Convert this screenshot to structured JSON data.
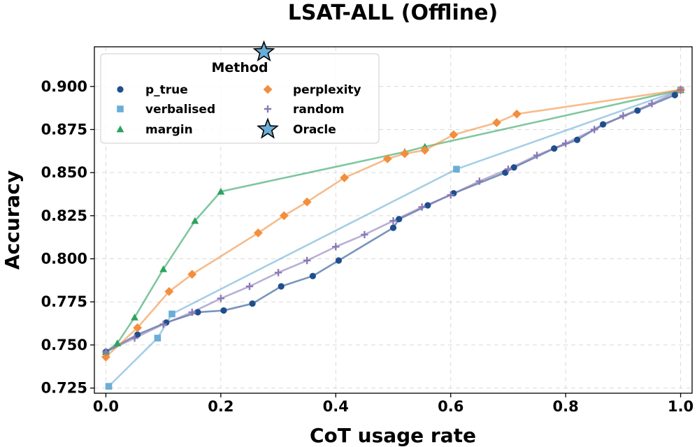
{
  "chart_data": {
    "type": "line",
    "title": "LSAT-ALL (Offline)",
    "xlabel": "CoT usage rate",
    "ylabel": "Accuracy",
    "xlim": [
      -0.02,
      1.02
    ],
    "ylim": [
      0.722,
      0.923
    ],
    "xticks": [
      0.0,
      0.2,
      0.4,
      0.6,
      0.8,
      1.0
    ],
    "xtick_labels": [
      "0.0",
      "0.2",
      "0.4",
      "0.6",
      "0.8",
      "1.0"
    ],
    "yticks": [
      0.725,
      0.75,
      0.775,
      0.8,
      0.825,
      0.85,
      0.875,
      0.9
    ],
    "ytick_labels": [
      "0.725",
      "0.750",
      "0.775",
      "0.800",
      "0.825",
      "0.850",
      "0.875",
      "0.900"
    ],
    "grid": true,
    "legend": {
      "title": "Method",
      "location": "upper-left",
      "columns": 2
    },
    "series": [
      {
        "name": "p_true",
        "color": "#1f4e8c",
        "marker": "circle",
        "x": [
          0.0,
          0.055,
          0.105,
          0.16,
          0.205,
          0.255,
          0.305,
          0.36,
          0.405,
          0.5,
          0.51,
          0.56,
          0.605,
          0.695,
          0.71,
          0.78,
          0.82,
          0.865,
          0.925,
          0.99,
          1.0
        ],
        "y": [
          0.746,
          0.756,
          0.763,
          0.769,
          0.77,
          0.774,
          0.784,
          0.79,
          0.799,
          0.818,
          0.823,
          0.831,
          0.838,
          0.85,
          0.853,
          0.864,
          0.869,
          0.878,
          0.886,
          0.895,
          0.898
        ]
      },
      {
        "name": "verbalised",
        "color": "#6aaed6",
        "marker": "square",
        "x": [
          0.005,
          0.09,
          0.115,
          0.61,
          1.0
        ],
        "y": [
          0.726,
          0.754,
          0.768,
          0.852,
          0.898
        ]
      },
      {
        "name": "margin",
        "color": "#2ca25f",
        "marker": "triangle",
        "x": [
          0.0,
          0.02,
          0.05,
          0.1,
          0.155,
          0.2,
          0.52,
          0.555,
          1.0
        ],
        "y": [
          0.746,
          0.751,
          0.766,
          0.794,
          0.822,
          0.839,
          0.862,
          0.865,
          0.898
        ]
      },
      {
        "name": "perplexity",
        "color": "#f28e3c",
        "marker": "diamond",
        "x": [
          0.0,
          0.055,
          0.11,
          0.15,
          0.265,
          0.31,
          0.35,
          0.415,
          0.49,
          0.52,
          0.555,
          0.605,
          0.68,
          0.715,
          1.0
        ],
        "y": [
          0.743,
          0.76,
          0.781,
          0.791,
          0.815,
          0.825,
          0.833,
          0.847,
          0.858,
          0.861,
          0.863,
          0.872,
          0.879,
          0.884,
          0.898
        ]
      },
      {
        "name": "random",
        "color": "#8a7ab8",
        "marker": "plus",
        "x": [
          0.0,
          0.05,
          0.1,
          0.15,
          0.2,
          0.25,
          0.3,
          0.35,
          0.4,
          0.45,
          0.5,
          0.55,
          0.6,
          0.65,
          0.7,
          0.75,
          0.8,
          0.85,
          0.9,
          0.95,
          1.0
        ],
        "y": [
          0.746,
          0.754,
          0.762,
          0.769,
          0.777,
          0.784,
          0.792,
          0.799,
          0.807,
          0.814,
          0.822,
          0.83,
          0.837,
          0.845,
          0.852,
          0.86,
          0.867,
          0.875,
          0.883,
          0.89,
          0.898
        ]
      }
    ],
    "oracle": {
      "name": "Oracle",
      "color": "#6aaed6",
      "marker": "star",
      "x": 0.275,
      "y": 0.92
    },
    "legend_order": [
      "p_true",
      "verbalised",
      "margin",
      "perplexity",
      "random",
      "Oracle"
    ]
  }
}
